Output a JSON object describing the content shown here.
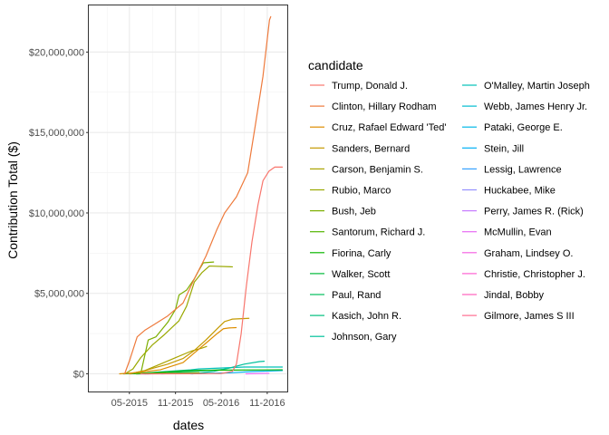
{
  "chart_data": {
    "type": "line",
    "xlabel": "dates",
    "ylabel": "Contribution Total ($)",
    "x_ticks": [
      "05-2015",
      "11-2015",
      "05-2016",
      "11-2016"
    ],
    "y_ticks": [
      "$0",
      "$5,000,000",
      "$10,000,000",
      "$15,000,000",
      "$20,000,000"
    ],
    "ylim": [
      -1100000,
      22900000
    ],
    "xlim": [
      "2014-11-20",
      "2017-01-20"
    ],
    "grid": true,
    "legend_title": "candidate",
    "legend_position": "right",
    "series": [
      {
        "name": "Trump, Donald J.",
        "color": "#F8766D",
        "points": [
          [
            "2015-06-16",
            0
          ],
          [
            "2016-05-01",
            20000
          ],
          [
            "2016-06-15",
            150000
          ],
          [
            "2016-07-01",
            600000
          ],
          [
            "2016-07-20",
            2500000
          ],
          [
            "2016-08-10",
            5500000
          ],
          [
            "2016-09-01",
            8200000
          ],
          [
            "2016-09-25",
            10500000
          ],
          [
            "2016-10-15",
            12000000
          ],
          [
            "2016-11-08",
            12600000
          ],
          [
            "2016-12-01",
            12850000
          ],
          [
            "2016-12-31",
            12850000
          ]
        ]
      },
      {
        "name": "Clinton, Hillary Rodham",
        "color": "#EE7A3C",
        "points": [
          [
            "2015-04-12",
            0
          ],
          [
            "2015-05-01",
            800000
          ],
          [
            "2015-06-01",
            2300000
          ],
          [
            "2015-07-01",
            2700000
          ],
          [
            "2015-08-01",
            3000000
          ],
          [
            "2015-10-01",
            3600000
          ],
          [
            "2015-12-01",
            4400000
          ],
          [
            "2016-01-15",
            5900000
          ],
          [
            "2016-03-01",
            7300000
          ],
          [
            "2016-04-15",
            9000000
          ],
          [
            "2016-05-15",
            10000000
          ],
          [
            "2016-07-01",
            11000000
          ],
          [
            "2016-08-15",
            12500000
          ],
          [
            "2016-09-15",
            15500000
          ],
          [
            "2016-10-15",
            18500000
          ],
          [
            "2016-11-10",
            22000000
          ],
          [
            "2016-11-15",
            22200000
          ]
        ]
      },
      {
        "name": "Cruz, Rafael Edward 'Ted'",
        "color": "#DD8D00",
        "points": [
          [
            "2015-03-23",
            0
          ],
          [
            "2015-06-01",
            80000
          ],
          [
            "2015-09-01",
            250000
          ],
          [
            "2015-12-01",
            700000
          ],
          [
            "2016-01-15",
            1300000
          ],
          [
            "2016-03-01",
            1900000
          ],
          [
            "2016-04-15",
            2500000
          ],
          [
            "2016-05-10",
            2800000
          ],
          [
            "2016-06-01",
            2850000
          ],
          [
            "2016-06-30",
            2870000
          ]
        ]
      },
      {
        "name": "Sanders, Bernard",
        "color": "#C49A00",
        "points": [
          [
            "2015-04-30",
            0
          ],
          [
            "2015-07-01",
            200000
          ],
          [
            "2015-10-01",
            600000
          ],
          [
            "2015-12-01",
            950000
          ],
          [
            "2016-01-15",
            1450000
          ],
          [
            "2016-03-01",
            2100000
          ],
          [
            "2016-04-15",
            2800000
          ],
          [
            "2016-05-15",
            3250000
          ],
          [
            "2016-06-15",
            3400000
          ],
          [
            "2016-08-20",
            3450000
          ]
        ]
      },
      {
        "name": "Carson, Benjamin S.",
        "color": "#A9A400",
        "points": [
          [
            "2015-05-04",
            0
          ],
          [
            "2015-07-01",
            200000
          ],
          [
            "2015-09-01",
            600000
          ],
          [
            "2015-11-01",
            1000000
          ],
          [
            "2016-01-01",
            1400000
          ],
          [
            "2016-02-15",
            1600000
          ],
          [
            "2016-03-04",
            1700000
          ]
        ]
      },
      {
        "name": "Rubio, Marco",
        "color": "#99A800",
        "points": [
          [
            "2015-04-13",
            0
          ],
          [
            "2015-05-15",
            300000
          ],
          [
            "2015-06-15",
            1000000
          ],
          [
            "2015-08-01",
            1800000
          ],
          [
            "2015-09-15",
            2400000
          ],
          [
            "2015-11-15",
            3300000
          ],
          [
            "2015-12-15",
            4200000
          ],
          [
            "2016-01-15",
            5700000
          ],
          [
            "2016-02-15",
            6300000
          ],
          [
            "2016-03-15",
            6700000
          ],
          [
            "2016-06-15",
            6650000
          ]
        ]
      },
      {
        "name": "Bush, Jeb",
        "color": "#7CAE00",
        "points": [
          [
            "2015-06-15",
            0
          ],
          [
            "2015-07-15",
            2100000
          ],
          [
            "2015-08-15",
            2300000
          ],
          [
            "2015-10-01",
            3200000
          ],
          [
            "2015-11-01",
            4000000
          ],
          [
            "2015-11-15",
            4900000
          ],
          [
            "2015-12-15",
            5200000
          ],
          [
            "2016-01-15",
            5900000
          ],
          [
            "2016-02-01",
            6400000
          ],
          [
            "2016-02-20",
            6900000
          ],
          [
            "2016-04-01",
            6950000
          ]
        ]
      },
      {
        "name": "Santorum, Richard J.",
        "color": "#53B400",
        "points": [
          [
            "2015-05-27",
            0
          ],
          [
            "2015-09-01",
            30000
          ],
          [
            "2016-01-15",
            60000
          ],
          [
            "2016-02-03",
            70000
          ]
        ]
      },
      {
        "name": "Fiorina, Carly",
        "color": "#0BB702",
        "points": [
          [
            "2015-05-04",
            0
          ],
          [
            "2015-09-01",
            100000
          ],
          [
            "2015-12-01",
            180000
          ],
          [
            "2016-02-10",
            220000
          ],
          [
            "2016-12-31",
            250000
          ]
        ]
      },
      {
        "name": "Walker, Scott",
        "color": "#00BA38",
        "points": [
          [
            "2015-07-13",
            0
          ],
          [
            "2015-08-15",
            40000
          ],
          [
            "2015-09-21",
            80000
          ]
        ]
      },
      {
        "name": "Paul, Rand",
        "color": "#00BD5C",
        "points": [
          [
            "2015-04-07",
            0
          ],
          [
            "2015-08-01",
            30000
          ],
          [
            "2016-02-03",
            60000
          ]
        ]
      },
      {
        "name": "Kasich, John R.",
        "color": "#00BF7D",
        "points": [
          [
            "2015-07-21",
            0
          ],
          [
            "2015-11-01",
            100000
          ],
          [
            "2016-03-01",
            200000
          ],
          [
            "2016-05-04",
            260000
          ]
        ]
      },
      {
        "name": "Johnson, Gary",
        "color": "#00C19B",
        "points": [
          [
            "2016-01-06",
            0
          ],
          [
            "2016-04-01",
            150000
          ],
          [
            "2016-06-01",
            350000
          ],
          [
            "2016-08-01",
            600000
          ],
          [
            "2016-10-01",
            760000
          ],
          [
            "2016-10-20",
            780000
          ]
        ]
      },
      {
        "name": "O'Malley, Martin Joseph",
        "color": "#00C0B7",
        "points": [
          [
            "2015-05-30",
            0
          ],
          [
            "2015-09-01",
            120000
          ],
          [
            "2016-01-01",
            250000
          ],
          [
            "2016-02-01",
            300000
          ],
          [
            "2016-08-01",
            420000
          ],
          [
            "2016-12-31",
            420000
          ]
        ]
      },
      {
        "name": "Webb, James Henry Jr.",
        "color": "#00BCD0",
        "points": [
          [
            "2015-07-02",
            0
          ],
          [
            "2015-10-20",
            30000
          ]
        ]
      },
      {
        "name": "Pataki, George E.",
        "color": "#00B8E7",
        "points": [
          [
            "2015-05-28",
            0
          ],
          [
            "2015-12-29",
            15000
          ]
        ]
      },
      {
        "name": "Stein, Jill",
        "color": "#00B0F6",
        "points": [
          [
            "2016-01-01",
            0
          ],
          [
            "2016-06-01",
            60000
          ],
          [
            "2016-09-01",
            140000
          ],
          [
            "2016-12-31",
            200000
          ]
        ]
      },
      {
        "name": "Lessig, Lawrence",
        "color": "#35A2FF",
        "points": [
          [
            "2015-09-06",
            0
          ],
          [
            "2015-11-02",
            20000
          ]
        ]
      },
      {
        "name": "Huckabee, Mike",
        "color": "#9590FF",
        "points": [
          [
            "2015-05-05",
            0
          ],
          [
            "2015-09-01",
            30000
          ],
          [
            "2016-02-01",
            50000
          ]
        ]
      },
      {
        "name": "Perry, James R. (Rick)",
        "color": "#C77CFF",
        "points": [
          [
            "2015-06-04",
            0
          ],
          [
            "2015-09-11",
            20000
          ]
        ]
      },
      {
        "name": "McMullin, Evan",
        "color": "#E76BF3",
        "points": [
          [
            "2016-08-08",
            0
          ],
          [
            "2016-11-08",
            30000
          ]
        ]
      },
      {
        "name": "Graham, Lindsey O.",
        "color": "#F564E3",
        "points": [
          [
            "2015-06-01",
            0
          ],
          [
            "2015-12-21",
            20000
          ]
        ]
      },
      {
        "name": "Christie, Christopher J.",
        "color": "#FD61D1",
        "points": [
          [
            "2015-06-30",
            0
          ],
          [
            "2016-02-10",
            40000
          ]
        ]
      },
      {
        "name": "Jindal, Bobby",
        "color": "#FF62BC",
        "points": [
          [
            "2015-06-24",
            0
          ],
          [
            "2015-11-17",
            15000
          ]
        ]
      },
      {
        "name": "Gilmore, James S III",
        "color": "#FF6C90",
        "points": [
          [
            "2015-07-30",
            0
          ],
          [
            "2016-02-12",
            5000
          ]
        ]
      }
    ]
  }
}
